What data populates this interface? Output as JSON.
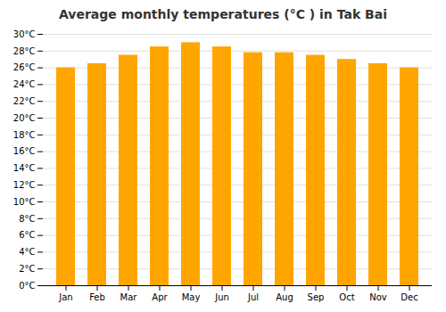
{
  "chart_data": {
    "type": "bar",
    "title": "Average monthly temperatures (°C ) in Tak Bai",
    "categories": [
      "Jan",
      "Feb",
      "Mar",
      "Apr",
      "May",
      "Jun",
      "Jul",
      "Aug",
      "Sep",
      "Oct",
      "Nov",
      "Dec"
    ],
    "values": [
      26.0,
      26.5,
      27.5,
      28.5,
      29.0,
      28.5,
      27.8,
      27.8,
      27.5,
      27.0,
      26.5,
      26.0
    ],
    "color": "#FFA500",
    "ylim": [
      0,
      30
    ],
    "yticks": [
      {
        "value": 0,
        "label": "0°C"
      },
      {
        "value": 2,
        "label": "2°C"
      },
      {
        "value": 4,
        "label": "4°C"
      },
      {
        "value": 6,
        "label": "6°C"
      },
      {
        "value": 8,
        "label": "8°C"
      },
      {
        "value": 10,
        "label": "10°C"
      },
      {
        "value": 12,
        "label": "12°C"
      },
      {
        "value": 14,
        "label": "14°C"
      },
      {
        "value": 16,
        "label": "16°C"
      },
      {
        "value": 18,
        "label": "18°C"
      },
      {
        "value": 20,
        "label": "20°C"
      },
      {
        "value": 22,
        "label": "22°C"
      },
      {
        "value": 24,
        "label": "24°C"
      },
      {
        "value": 26,
        "label": "26°C"
      },
      {
        "value": 28,
        "label": "28°C"
      },
      {
        "value": 30,
        "label": "30°C"
      }
    ],
    "grid": true
  }
}
